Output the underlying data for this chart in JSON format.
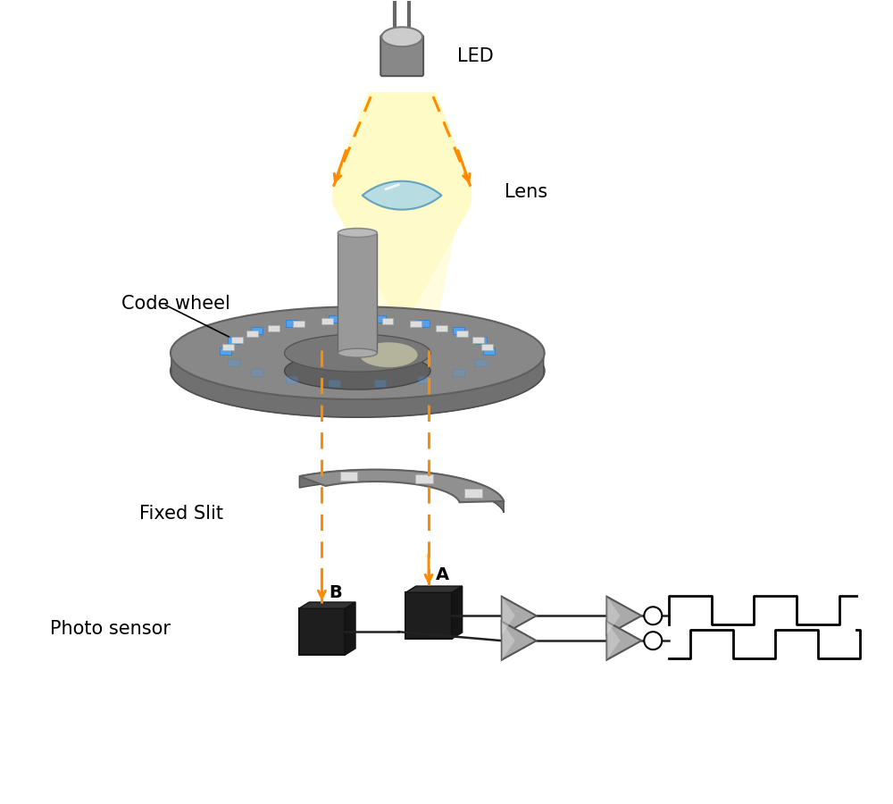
{
  "bg_color": "#ffffff",
  "orange_dashed": "#FF8C00",
  "led_label": "LED",
  "lens_label": "Lens",
  "code_wheel_label": "Code wheel",
  "fixed_slit_label": "Fixed Slit",
  "photo_sensor_label": "Photo sensor",
  "label_A": "A",
  "label_B": "B",
  "blue_slot_color": "#4DA6FF",
  "wire_color": "#222222",
  "amp_face_color": "#aaaaaa",
  "amp_edge_color": "#555555",
  "sensor_face_color": "#222222",
  "lens_color": "#add8e6",
  "lens_edge": "#5599bb",
  "beam_color": "#fffaaa",
  "beam_color2": "#fffacc",
  "gray_rim": "#707070",
  "gray_disk": "#888888",
  "gray_shaft": "#999999",
  "gray_inner": "#777777",
  "gray_slit": "#909090",
  "circle_output_color": "#ffffff"
}
